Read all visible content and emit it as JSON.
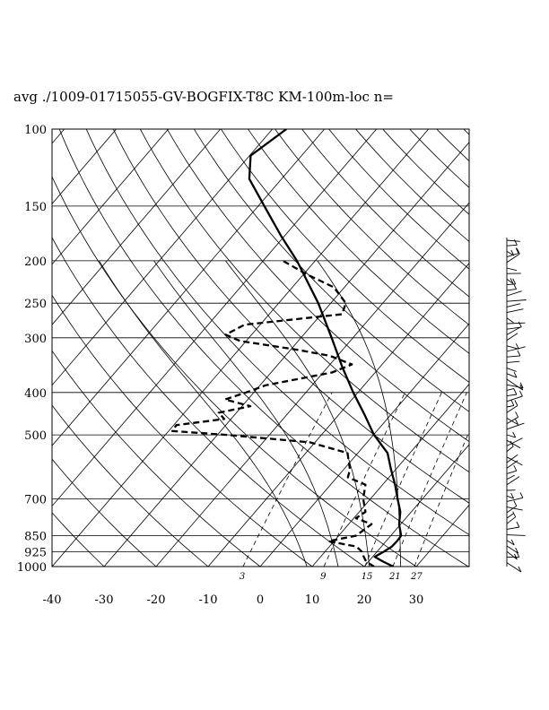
{
  "chart_data": {
    "type": "line",
    "subtype": "skew-T log-P sounding",
    "title": "avg ./1009-01715055-GV-BOGFIX-T8C KM-100m-loc n=",
    "x_axis": {
      "ticks": [
        -40,
        -30,
        -20,
        -10,
        0,
        10,
        20,
        30
      ],
      "xlim": [
        -40,
        40
      ]
    },
    "y_axis": {
      "scale": "log",
      "ticks": [
        100,
        150,
        200,
        250,
        300,
        400,
        500,
        700,
        850,
        925,
        1000
      ],
      "ylim": [
        1000,
        100
      ]
    },
    "mixing_ratio_labels": [
      "3",
      "9",
      "15",
      "21",
      "27"
    ],
    "series": [
      {
        "style": "solid",
        "points": [
          [
            1000,
            25.6
          ],
          [
            975,
            22.9
          ],
          [
            950,
            20.4
          ],
          [
            925,
            21.3
          ],
          [
            900,
            22.0
          ],
          [
            875,
            22.1
          ],
          [
            850,
            22.0
          ],
          [
            800,
            19.7
          ],
          [
            750,
            17.9
          ],
          [
            700,
            15.2
          ],
          [
            650,
            12.4
          ],
          [
            600,
            9.1
          ],
          [
            550,
            5.7
          ],
          [
            500,
            0.1
          ],
          [
            450,
            -5.0
          ],
          [
            400,
            -10.9
          ],
          [
            350,
            -17.2
          ],
          [
            300,
            -24.1
          ],
          [
            250,
            -32.4
          ],
          [
            200,
            -43.5
          ],
          [
            175,
            -50.8
          ],
          [
            150,
            -58.8
          ],
          [
            130,
            -66.2
          ],
          [
            115,
            -69.8
          ],
          [
            100,
            -67.3
          ]
        ]
      },
      {
        "style": "dashed",
        "points": [
          [
            1000,
            21.9
          ],
          [
            975,
            19.6
          ],
          [
            950,
            18.3
          ],
          [
            925,
            17.1
          ],
          [
            900,
            15.2
          ],
          [
            875,
            8.9
          ],
          [
            850,
            13.3
          ],
          [
            800,
            14.4
          ],
          [
            775,
            10.4
          ],
          [
            750,
            11.2
          ],
          [
            700,
            8.6
          ],
          [
            650,
            6.7
          ],
          [
            625,
            2.1
          ],
          [
            600,
            1.2
          ],
          [
            550,
            -2.0
          ],
          [
            520,
            -11.0
          ],
          [
            500,
            -28.2
          ],
          [
            490,
            -39.3
          ],
          [
            475,
            -39.5
          ],
          [
            460,
            -31.3
          ],
          [
            445,
            -33.4
          ],
          [
            430,
            -28.4
          ],
          [
            415,
            -34.4
          ],
          [
            400,
            -31.5
          ],
          [
            385,
            -28.9
          ],
          [
            360,
            -18.3
          ],
          [
            345,
            -15.8
          ],
          [
            330,
            -21.4
          ],
          [
            320,
            -28.3
          ],
          [
            305,
            -41.2
          ],
          [
            295,
            -45.0
          ],
          [
            280,
            -43.0
          ],
          [
            265,
            -26.0
          ],
          [
            250,
            -27.1
          ],
          [
            230,
            -32.0
          ],
          [
            215,
            -39.3
          ],
          [
            200,
            -46.2
          ]
        ]
      }
    ]
  }
}
